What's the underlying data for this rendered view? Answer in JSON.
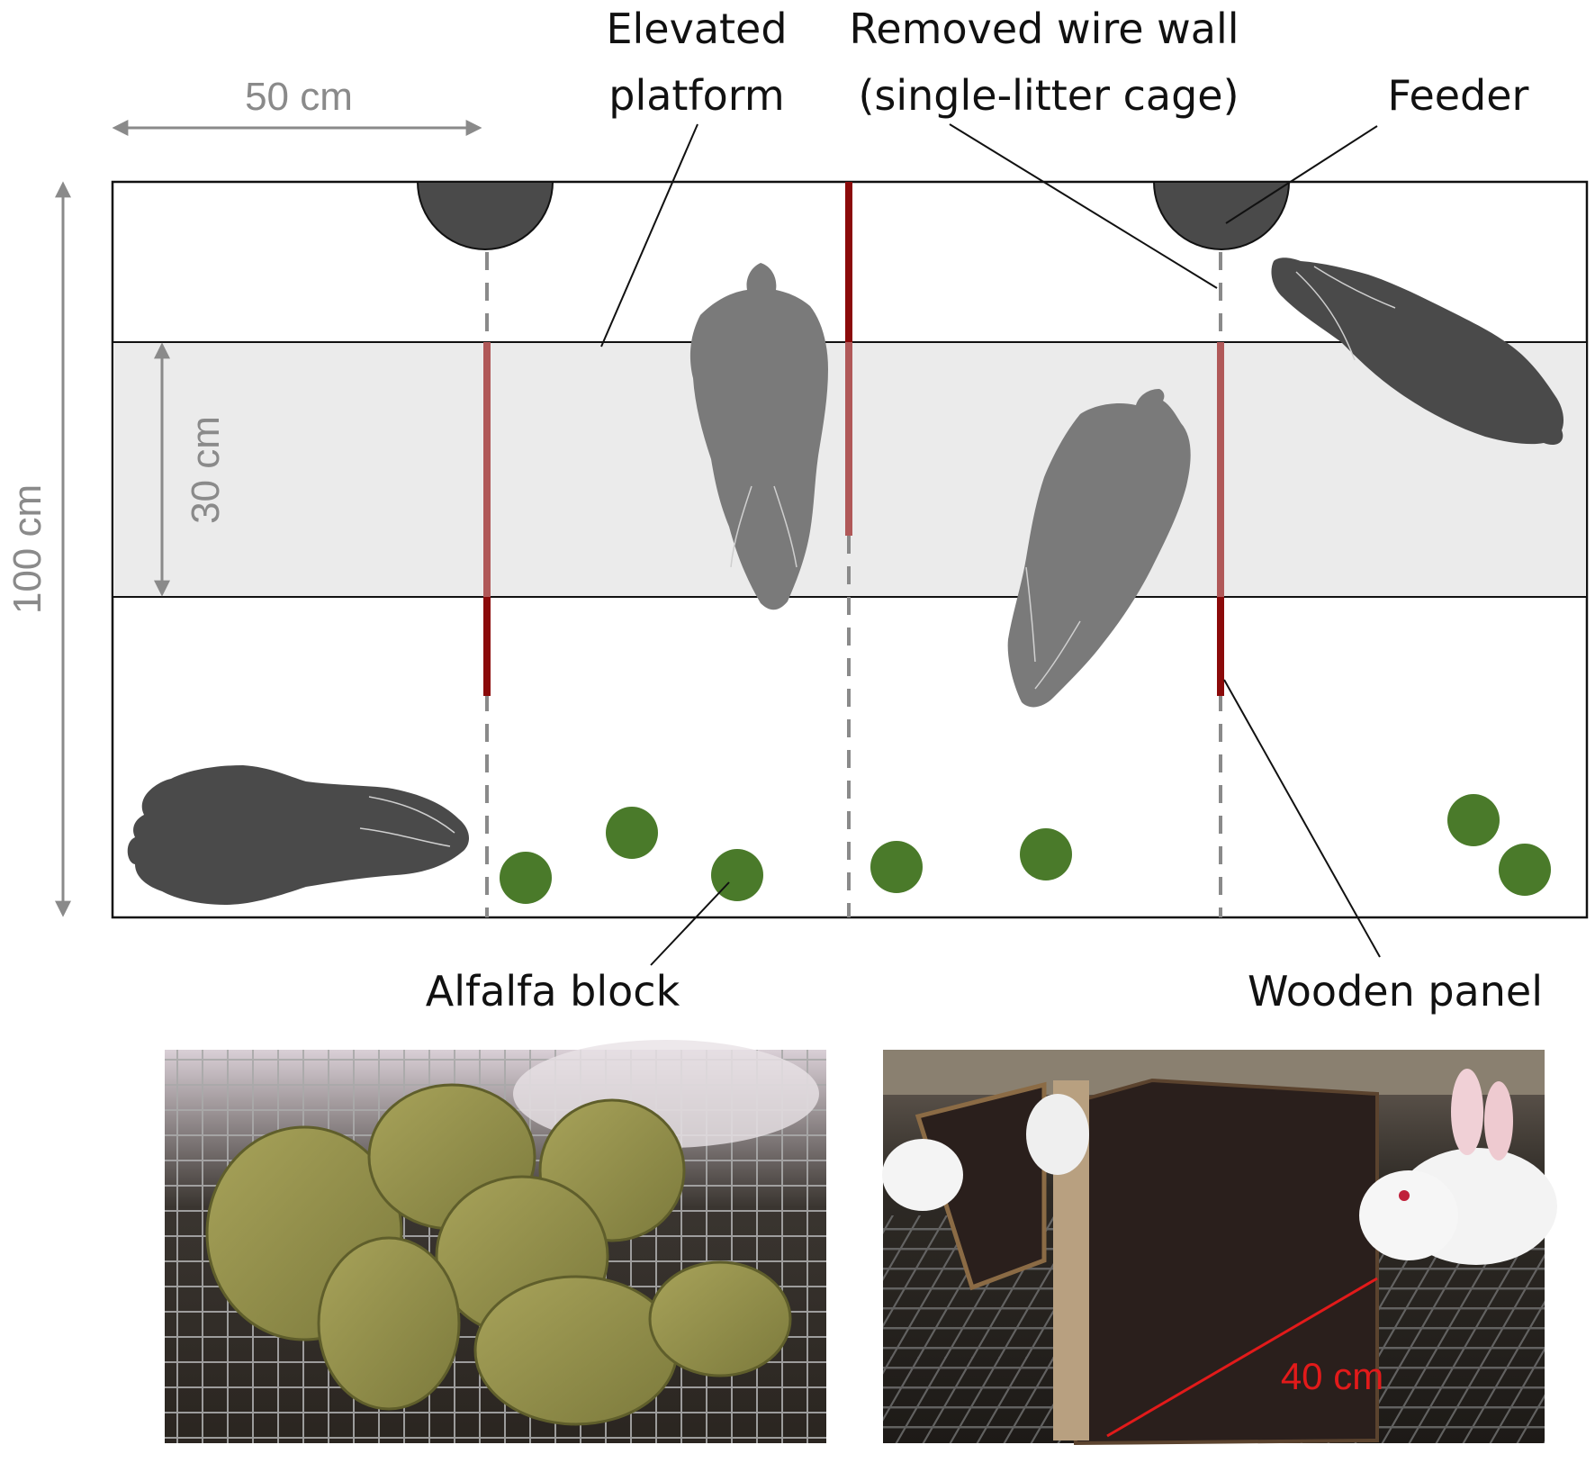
{
  "labels": {
    "elevated_platform_line1": "Elevated",
    "elevated_platform_line2": "platform",
    "removed_wire_wall_line1": "Removed wire wall",
    "removed_wire_wall_line2": "(single-litter cage)",
    "feeder": "Feeder",
    "alfalfa_block": "Alfalfa block",
    "wooden_panel": "Wooden panel"
  },
  "dimensions": {
    "cage_section_width": "50 cm",
    "cage_depth": "100 cm",
    "platform_depth": "30 cm",
    "panel_length": "40 cm"
  },
  "colors": {
    "rabbit_dark": "#4a4a4a",
    "rabbit_on_platform": "#7a7a7a",
    "platform_fill": "#ebebeb",
    "wooden_panel": "#8b0a0a",
    "alfalfa_block": "#4a7a2a",
    "feeder": "#4a4a4a",
    "dimension_arrows": "#8a8a8a",
    "photo_measure": "#e21a1a"
  },
  "photos": [
    {
      "name": "alfalfa-blocks-photo",
      "subject": "alfalfa blocks on wire cage floor"
    },
    {
      "name": "wooden-panel-photo",
      "subject": "rabbits with wooden panel in cage"
    }
  ]
}
